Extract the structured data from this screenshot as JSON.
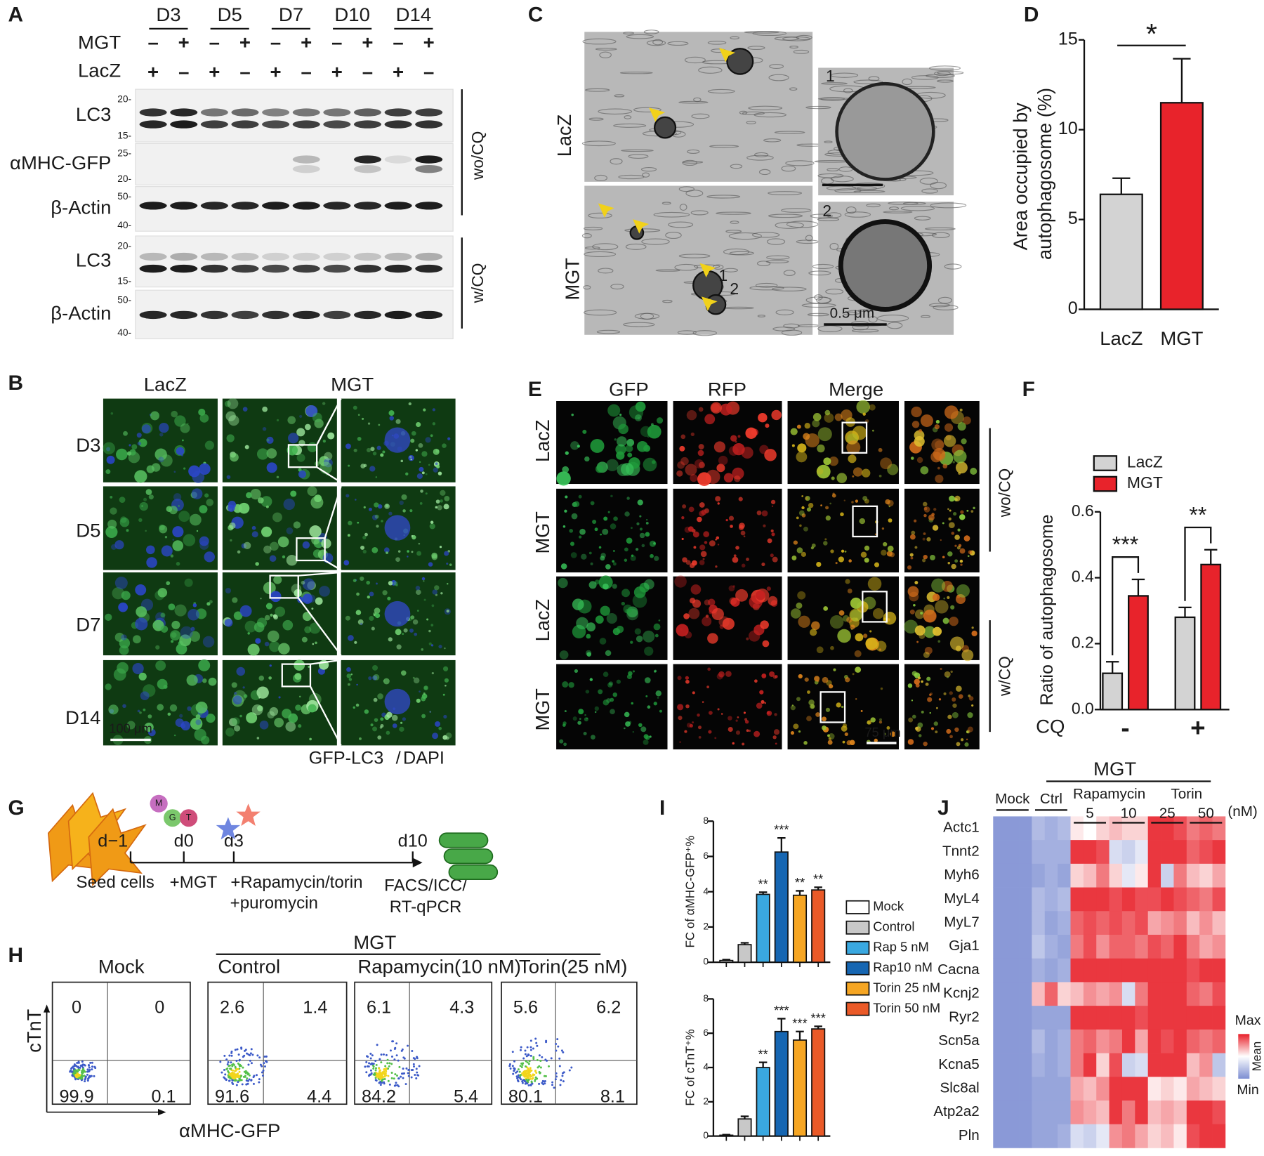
{
  "panel_labels": [
    "A",
    "B",
    "C",
    "D",
    "E",
    "F",
    "G",
    "H",
    "I",
    "J"
  ],
  "panel_a": {
    "days": [
      "D3",
      "D5",
      "D7",
      "D10",
      "D14"
    ],
    "mgt_label": "MGT",
    "lacz_label": "LacZ",
    "mgt": [
      "–",
      "+",
      "–",
      "+",
      "–",
      "+",
      "–",
      "+",
      "–",
      "+"
    ],
    "lacz": [
      "+",
      "–",
      "+",
      "–",
      "+",
      "–",
      "+",
      "–",
      "+",
      "–"
    ],
    "blots": [
      {
        "label": "LC3",
        "markers": [
          "20-",
          "15-"
        ]
      },
      {
        "label": "αMHC-GFP",
        "markers": [
          "25-",
          "20-"
        ]
      },
      {
        "label": "β-Actin",
        "markers": [
          "50-",
          "40-"
        ]
      },
      {
        "label": "LC3",
        "markers": [
          "20-",
          "15-"
        ]
      },
      {
        "label": "β-Actin",
        "markers": [
          "50-",
          "40-"
        ]
      }
    ],
    "groups": [
      "wo/CQ",
      "w/CQ"
    ]
  },
  "panel_b": {
    "columns": [
      "LacZ",
      "MGT"
    ],
    "rows": [
      "D3",
      "D5",
      "D7",
      "D14"
    ],
    "scale_bar": "100 μm",
    "stain": [
      "GFP-LC3",
      "/",
      "DAPI"
    ]
  },
  "panel_c": {
    "rows": [
      "LacZ",
      "MGT"
    ],
    "markers": [
      "1",
      "2"
    ],
    "insets": [
      "1",
      "2"
    ],
    "scale_bar": "0.5 μm"
  },
  "panel_e": {
    "columns": [
      "GFP",
      "RFP",
      "Merge"
    ],
    "rows": [
      "LacZ",
      "MGT",
      "LacZ",
      "MGT"
    ],
    "groups": [
      "wo/CQ",
      "w/CQ"
    ],
    "scale_bar": "75 μm"
  },
  "panel_g": {
    "timepoints": [
      "d−1",
      "d0",
      "d3",
      "d10"
    ],
    "steps": [
      "Seed cells",
      "+MGT",
      "+Rapamycin/torin",
      "+puromycin",
      "FACS/ICC/",
      "RT-qPCR"
    ],
    "factors": [
      "M",
      "G",
      "T"
    ]
  },
  "panel_h": {
    "group": "MGT",
    "y_label": "cTnT",
    "x_label": "αMHC-GFP",
    "plots": [
      {
        "title": "Mock",
        "quadrants": [
          0,
          0,
          99.9,
          0.1
        ]
      },
      {
        "title": "Control",
        "quadrants": [
          2.6,
          1.4,
          91.6,
          4.4
        ]
      },
      {
        "title": "Rapamycin(10 nM)",
        "quadrants": [
          6.1,
          4.3,
          84.2,
          5.4
        ]
      },
      {
        "title": "Torin(25 nM)",
        "quadrants": [
          5.6,
          6.2,
          80.1,
          8.1
        ]
      }
    ]
  },
  "chart_data": [
    {
      "type": "bar",
      "y_label": "Area occupied by autophagosome (%)",
      "categories": [
        "LacZ",
        "MGT"
      ],
      "values": [
        6.4,
        11.5
      ],
      "errors": [
        0.9,
        2.45
      ],
      "colors": [
        "#d3d3d3",
        "#e8232b"
      ],
      "ylim": [
        0,
        15
      ],
      "yticks": [
        0,
        5,
        10,
        15
      ],
      "significance": "*"
    },
    {
      "type": "grouped-bar",
      "y_label": "Ratio of autophagosome",
      "x_label": "CQ",
      "categories": [
        "-",
        "+"
      ],
      "series": [
        {
          "name": "LacZ",
          "color": "#d3d3d3",
          "values": [
            0.11,
            0.28
          ],
          "errors": [
            0.035,
            0.03
          ]
        },
        {
          "name": "MGT",
          "color": "#e8232b",
          "values": [
            0.345,
            0.44
          ],
          "errors": [
            0.05,
            0.045
          ]
        }
      ],
      "ylim": [
        0,
        0.6
      ],
      "yticks": [
        {
          "value": 0,
          "label": "0.0"
        },
        0.2,
        0.4,
        0.6
      ],
      "significance": [
        "***",
        "**"
      ]
    },
    {
      "type": "bar",
      "y_label": "FC of αMHC-GFP⁺%",
      "categories": [
        "Mock",
        "Control",
        "Rap 5 nM",
        "Rap10 nM",
        "Torin 25 nM",
        "Torin 50 nM"
      ],
      "colors": [
        "#ffffff",
        "#c8c8c8",
        "#3aa8e0",
        "#1666b2",
        "#f6a623",
        "#ea5a28"
      ],
      "values": [
        0.1,
        1.0,
        3.85,
        6.25,
        3.8,
        4.1
      ],
      "errors": [
        0.05,
        0.1,
        0.12,
        0.8,
        0.25,
        0.15
      ],
      "annotations": [
        null,
        null,
        "**",
        "***",
        "**",
        "**"
      ],
      "ylim": [
        0,
        8
      ],
      "yticks": [
        0,
        2,
        4,
        6,
        8
      ]
    },
    {
      "type": "bar",
      "y_label": "FC of cTnT⁺%",
      "values": [
        0.05,
        1.0,
        4.0,
        6.1,
        5.6,
        6.25
      ],
      "errors": [
        0.03,
        0.15,
        0.3,
        0.75,
        0.5,
        0.15
      ],
      "annotations": [
        null,
        null,
        "**",
        "***",
        "***",
        "***"
      ],
      "ylim": [
        0,
        8
      ],
      "yticks": [
        0,
        2,
        4,
        6,
        8
      ]
    },
    {
      "type": "heatmap",
      "group": "MGT",
      "treatments": [
        "Rapamycin",
        "Torin"
      ],
      "unit": "(nM)",
      "column_groups": [
        "Mock",
        "Ctrl",
        "5",
        "10",
        "25",
        "50"
      ],
      "rows": [
        "Actc1",
        "Tnnt2",
        "Myh6",
        "MyL4",
        "MyL7",
        "Gja1",
        "Cacna",
        "Kcnj2",
        "Ryr2",
        "Scn5a",
        "Kcna5",
        "Slc8al",
        "Atp2a2",
        "Pln"
      ],
      "values": [
        [
          -0.9,
          -0.9,
          -0.9,
          -0.6,
          -0.7,
          -0.6,
          0.1,
          0.0,
          0.2,
          0.3,
          0.2,
          0.2,
          0.9,
          0.9,
          0.8,
          0.6,
          0.7,
          0.6
        ],
        [
          -0.9,
          -0.9,
          -0.9,
          -0.7,
          -0.7,
          -0.7,
          0.9,
          0.9,
          0.8,
          -0.3,
          -0.4,
          -0.2,
          0.9,
          0.9,
          0.9,
          0.7,
          0.8,
          0.9
        ],
        [
          -0.9,
          -0.9,
          -0.9,
          -0.8,
          -0.7,
          -0.8,
          0.2,
          0.3,
          0.6,
          0.2,
          -0.2,
          0.1,
          0.9,
          -0.4,
          0.6,
          0.3,
          0.2,
          0.4
        ],
        [
          -0.9,
          -0.9,
          -0.9,
          -0.6,
          -0.7,
          -0.6,
          0.9,
          0.9,
          0.9,
          0.8,
          0.9,
          0.8,
          0.8,
          0.9,
          0.8,
          0.7,
          0.6,
          0.8
        ],
        [
          -0.9,
          -0.9,
          -0.9,
          -0.6,
          -0.8,
          -0.7,
          0.7,
          0.8,
          0.7,
          0.8,
          0.7,
          0.8,
          0.4,
          0.5,
          0.6,
          0.3,
          0.5,
          0.3
        ],
        [
          -0.9,
          -0.9,
          -0.9,
          -0.5,
          -0.7,
          -0.8,
          0.6,
          0.8,
          0.5,
          0.7,
          0.7,
          0.6,
          0.8,
          0.7,
          0.9,
          0.6,
          0.4,
          0.5
        ],
        [
          -0.9,
          -0.9,
          -0.9,
          -0.7,
          -0.8,
          -0.7,
          0.9,
          0.9,
          0.9,
          0.9,
          0.9,
          0.9,
          0.9,
          0.9,
          0.9,
          0.8,
          0.9,
          0.9
        ],
        [
          -0.9,
          -0.9,
          -0.9,
          0.3,
          0.7,
          0.2,
          0.3,
          0.5,
          0.4,
          0.5,
          -0.3,
          0.6,
          0.9,
          0.9,
          0.9,
          0.7,
          0.6,
          0.8
        ],
        [
          -0.9,
          -0.9,
          -0.9,
          -0.8,
          -0.8,
          -0.8,
          0.9,
          0.9,
          0.9,
          0.9,
          0.9,
          0.8,
          0.9,
          0.9,
          0.9,
          0.9,
          0.9,
          0.9
        ],
        [
          -0.9,
          -0.9,
          -0.9,
          -0.6,
          -0.8,
          -0.7,
          0.6,
          0.7,
          0.5,
          0.6,
          0.9,
          0.4,
          0.9,
          0.8,
          0.9,
          0.7,
          0.6,
          0.7
        ],
        [
          -0.9,
          -0.9,
          -0.9,
          -0.7,
          -0.8,
          -0.7,
          0.6,
          0.9,
          0.2,
          0.8,
          -0.4,
          -0.3,
          0.9,
          0.9,
          0.9,
          0.3,
          0.5,
          -0.5
        ],
        [
          -0.9,
          -0.9,
          -0.9,
          -0.8,
          -0.8,
          -0.8,
          0.4,
          0.3,
          0.5,
          0.9,
          0.9,
          0.9,
          0.1,
          0.2,
          0.1,
          0.4,
          0.3,
          0.2
        ],
        [
          -0.9,
          -0.9,
          -0.9,
          -0.8,
          -0.8,
          -0.8,
          0.5,
          0.4,
          0.3,
          0.9,
          0.6,
          0.9,
          0.3,
          0.4,
          0.3,
          0.9,
          0.9,
          0.8
        ],
        [
          -0.9,
          -0.9,
          -0.9,
          -0.8,
          -0.8,
          -0.7,
          -0.3,
          -0.4,
          -0.2,
          0.5,
          0.6,
          0.4,
          0.2,
          0.3,
          0.1,
          0.8,
          0.9,
          0.9
        ]
      ],
      "zlim": [
        -1,
        1
      ],
      "colors": [
        "#7d8ed2",
        "#ffffff",
        "#e8212a"
      ],
      "legend": [
        "Max",
        "Mean",
        "Min"
      ]
    }
  ]
}
